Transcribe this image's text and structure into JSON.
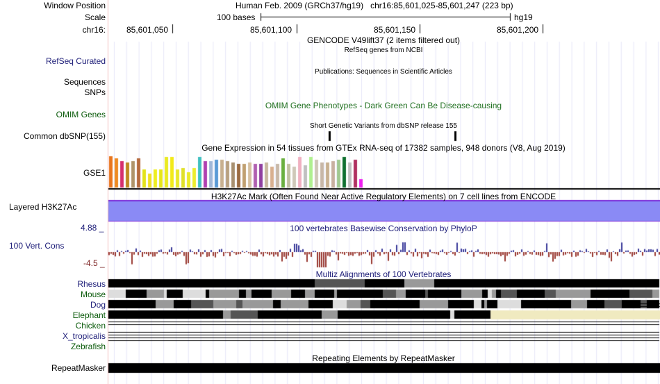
{
  "header": {
    "window_position_label": "Window Position",
    "window_position_value": "Human Feb. 2009 (GRCh37/hg19)   chr16:85,601,025-85,601,247 (223 bp)",
    "scale_label": "Scale",
    "scale_value": "100 bases",
    "assembly": "hg19",
    "chrom_label": "chr16:",
    "ruler_ticks": [
      "85,601,050",
      "85,601,100",
      "85,601,150",
      "85,601,200"
    ]
  },
  "tracks": {
    "gencode_title": "GENCODE V49lift37 (2 items filtered out)",
    "refseq_label": "RefSeq Curated",
    "refseq_title": "RefSeq genes from NCBI",
    "publications_title": "Publications: Sequences in Scientific Articles",
    "sequences_label": "Sequences",
    "snps_label": "SNPs",
    "omim_label": "OMIM Genes",
    "omim_title": "OMIM Gene Phenotypes - Dark Green Can Be Disease-causing",
    "dbsnp_title": "Short Genetic Variants from dbSNP release 155",
    "dbsnp_label": "Common dbSNP(155)",
    "gtex_title": "Gene Expression in 54 tissues from GTEx RNA-seq of 17382 samples, 948 donors (V8, Aug 2019)",
    "gse1_label": "GSE1",
    "h3k27ac_title": "H3K27Ac Mark (Often Found Near Active Regulatory Elements) on 7 cell lines from ENCODE",
    "h3k27ac_label": "Layered H3K27Ac",
    "cons_max": "4.88 _",
    "cons_title": "100 vertebrates Basewise Conservation by PhyloP",
    "cons_label": "100 Vert. Cons",
    "cons_min": "-4.5 _",
    "multiz_title": "Multiz Alignments of 100 Vertebrates",
    "species": [
      "Rhesus",
      "Mouse",
      "Dog",
      "Elephant",
      "Chicken",
      "X_tropicalis",
      "Zebrafish"
    ],
    "repeat_title": "Repeating Elements by RepeatMasker",
    "repeat_label": "RepeatMasker"
  },
  "colors": {
    "track_label_blue": "#20207a",
    "track_label_green": "#0a5a0a",
    "omim_title_green": "#207020",
    "h3k27ac_fill": "#8a8af5",
    "h3k27ac_line": "#7a2ad8",
    "cons_pos": "#3a3a9a",
    "cons_neg": "#9a3a32",
    "elephant_gap": "#f0eac0"
  }
}
